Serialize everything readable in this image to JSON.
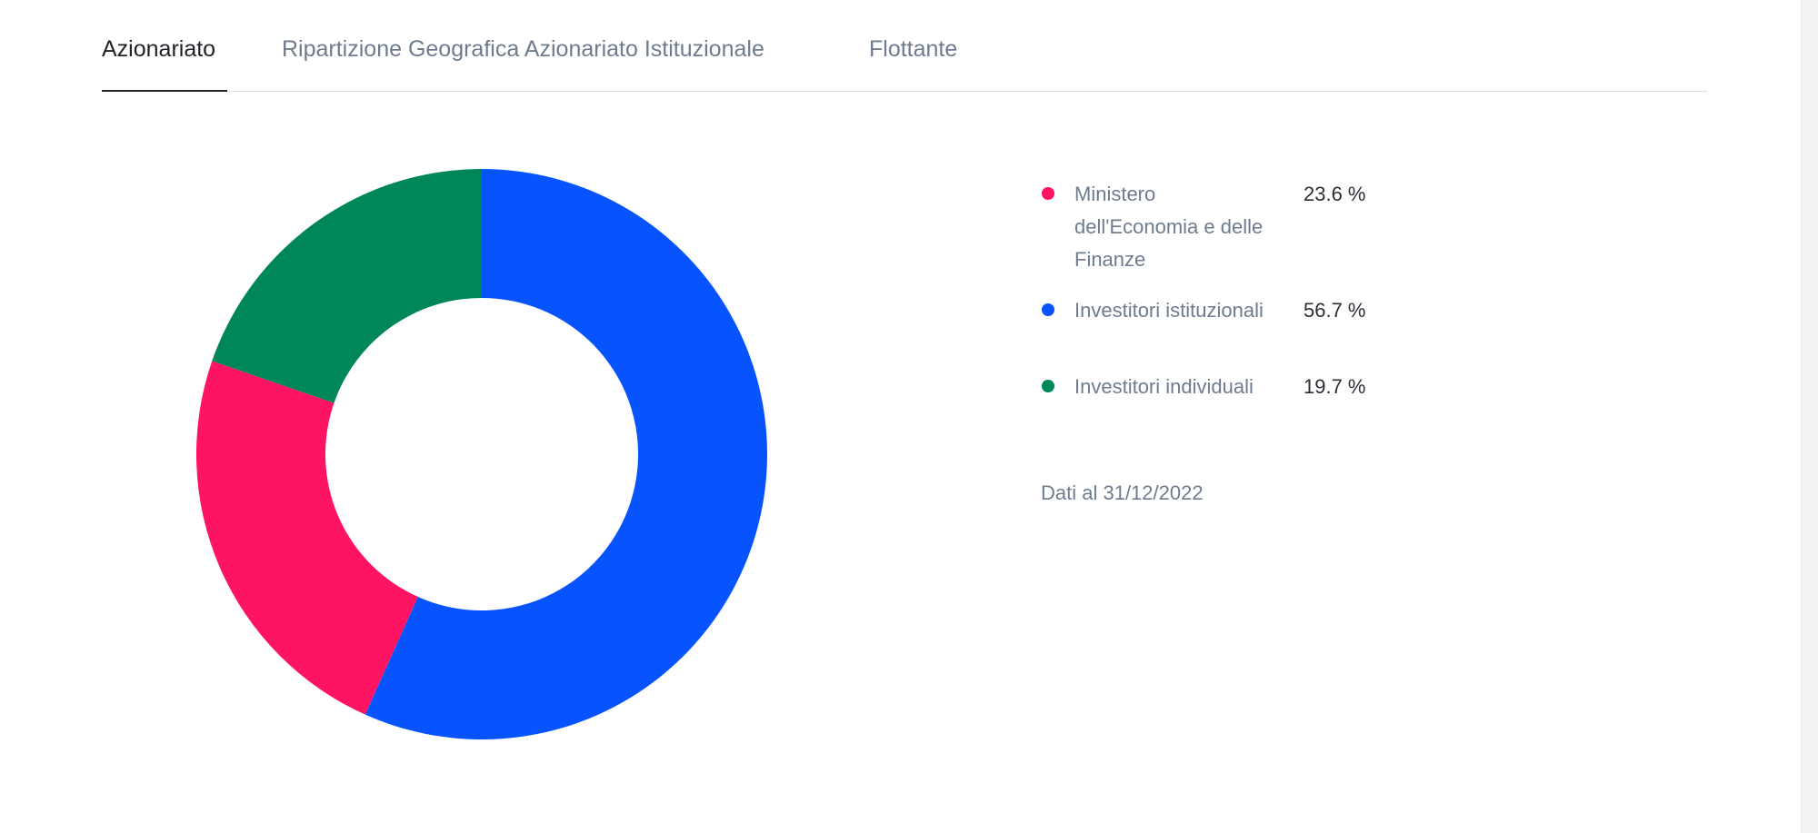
{
  "tabs": [
    {
      "label": "Azionariato",
      "active": true
    },
    {
      "label": "Ripartizione Geografica Azionariato Istituzionale",
      "active": false
    },
    {
      "label": "Flottante",
      "active": false
    }
  ],
  "chart_data": {
    "type": "pie",
    "donut": true,
    "slices": [
      {
        "label": "Ministero dell'Economia e delle Finanze",
        "value": 23.6,
        "display": "23.6 %",
        "color": "#ff1463"
      },
      {
        "label": "Investitori istituzionali",
        "value": 56.7,
        "display": "56.7 %",
        "color": "#0754ff"
      },
      {
        "label": "Investitori individuali",
        "value": 19.7,
        "display": "19.7 %",
        "color": "#008758"
      }
    ],
    "order_clockwise_from_top": [
      "Investitori istituzionali",
      "Ministero dell'Economia e delle Finanze",
      "Investitori individuali"
    ],
    "legend_position": "right"
  },
  "footnote": "Dati al 31/12/2022"
}
